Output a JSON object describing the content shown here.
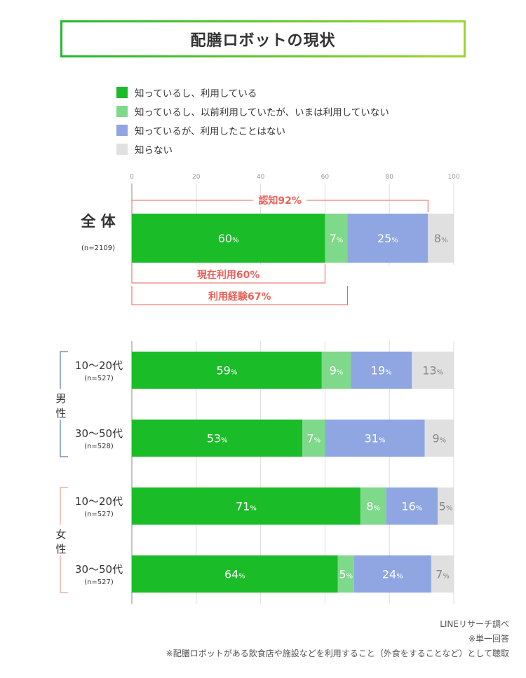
{
  "title": "配膳ロボットの現状",
  "colors": {
    "using": "#1abc28",
    "used_before": "#7fd98a",
    "know_not_used": "#8fa6e3",
    "unknown": "#e0e0e0",
    "annotation": "#e8625a"
  },
  "legend": [
    {
      "label": "知っているし、利用している",
      "color": "#1abc28"
    },
    {
      "label": "知っているし、以前利用していたが、いまは利用していない",
      "color": "#7fd98a"
    },
    {
      "label": "知っているが、利用したことはない",
      "color": "#8fa6e3"
    },
    {
      "label": "知らない",
      "color": "#e0e0e0"
    }
  ],
  "chart_data": {
    "type": "bar",
    "orientation": "horizontal",
    "stacked": true,
    "xlim": [
      0,
      100
    ],
    "xticks": [
      "0",
      "20",
      "40",
      "60",
      "80",
      "100"
    ],
    "value_suffix": "%",
    "rows": [
      {
        "label": "全 体",
        "sub": "(n=2109)",
        "values": [
          60,
          7,
          25,
          8
        ]
      },
      {
        "label": "10～20代",
        "sub": "(n=527)",
        "group": "男性",
        "values": [
          59,
          9,
          19,
          13
        ]
      },
      {
        "label": "30～50代",
        "sub": "(n=528)",
        "group": "男性",
        "values": [
          53,
          7,
          31,
          9
        ]
      },
      {
        "label": "10～20代",
        "sub": "(n=527)",
        "group": "女性",
        "values": [
          71,
          8,
          16,
          5
        ]
      },
      {
        "label": "30～50代",
        "sub": "(n=527)",
        "group": "女性",
        "values": [
          64,
          5,
          24,
          7
        ]
      }
    ],
    "groups": [
      {
        "label": "男性",
        "chars": [
          "男",
          "性"
        ],
        "color": "#2e5d9a"
      },
      {
        "label": "女性",
        "chars": [
          "女",
          "性"
        ],
        "color": "#e58873"
      }
    ],
    "annotations": [
      {
        "label": "認知92%",
        "from": 0,
        "to": 92
      },
      {
        "label": "現在利用60%",
        "from": 0,
        "to": 60
      },
      {
        "label": "利用経験67%",
        "from": 0,
        "to": 67
      }
    ]
  },
  "footnotes": [
    "LINEリサーチ調べ",
    "※単一回答",
    "※配膳ロボットがある飲食店や施設などを利用すること（外食をすることなど）として聴取"
  ]
}
